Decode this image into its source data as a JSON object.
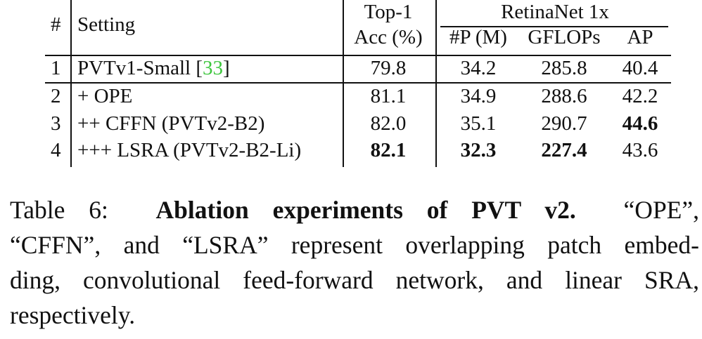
{
  "table": {
    "header": {
      "num": "#",
      "setting": "Setting",
      "top1_line1": "Top-1",
      "top1_line2": "Acc (%)",
      "group": "RetinaNet 1x",
      "params": "#P (M)",
      "gflops": "GFLOPs",
      "ap": "AP"
    },
    "rows": [
      {
        "num": "1",
        "setting_text": "PVTv1-Small [",
        "setting_ref": "33",
        "setting_tail": "]",
        "acc": "79.8",
        "params": "34.2",
        "gflops": "285.8",
        "ap": "40.4"
      },
      {
        "num": "2",
        "setting_text": "+ OPE",
        "acc": "81.1",
        "params": "34.9",
        "gflops": "288.6",
        "ap": "42.2"
      },
      {
        "num": "3",
        "setting_text": "++ CFFN (PVTv2-B2)",
        "acc": "82.0",
        "params": "35.1",
        "gflops": "290.7",
        "ap": "44.6"
      },
      {
        "num": "4",
        "setting_text": "+++ LSRA (PVTv2-B2-Li)",
        "acc": "82.1",
        "params": "32.3",
        "gflops": "227.4",
        "ap": "43.6"
      }
    ]
  },
  "caption": {
    "label": "Table 6:",
    "title": "Ablation experiments of PVT v2.",
    "line1_tail": "“OPE”,",
    "line2": "“CFFN”, and “LSRA” represent overlapping patch embed-",
    "line3": "ding, convolutional feed-forward network, and linear SRA,",
    "line4": "respectively."
  },
  "colors": {
    "citation": "#3ec63e",
    "text": "#111111"
  }
}
